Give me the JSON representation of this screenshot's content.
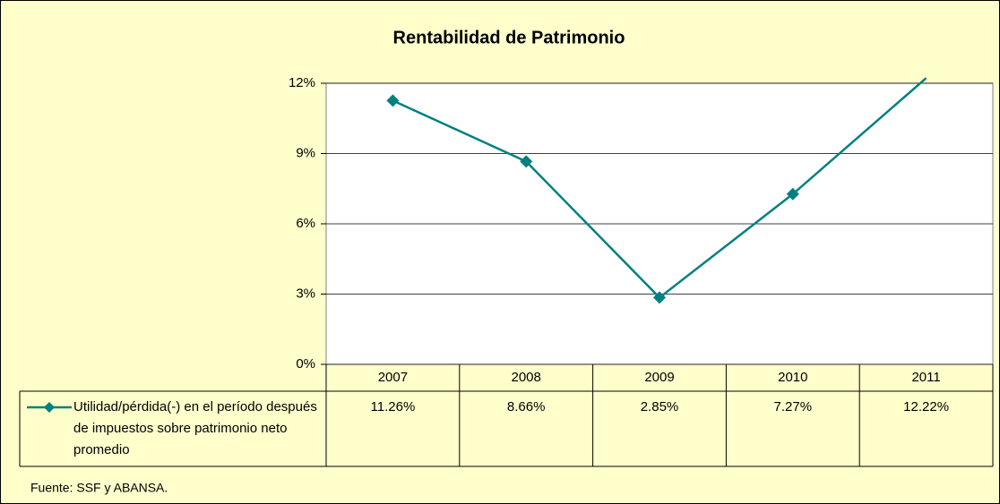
{
  "chart_data": {
    "type": "line",
    "title": "Rentabilidad de Patrimonio",
    "categories": [
      "2007",
      "2008",
      "2009",
      "2010",
      "2011"
    ],
    "series": [
      {
        "name": "Utilidad/pérdida(-) en el período después de impuestos sobre patrimonio neto promedio",
        "color": "#008080",
        "values": [
          11.26,
          8.66,
          2.85,
          7.27,
          12.22
        ],
        "value_labels": [
          "11.26%",
          "8.66%",
          "2.85%",
          "7.27%",
          "12.22%"
        ]
      }
    ],
    "ylim": [
      0,
      12
    ],
    "yticks": [
      {
        "value": 0,
        "label": "0%"
      },
      {
        "value": 3,
        "label": "3%"
      },
      {
        "value": 6,
        "label": "6%"
      },
      {
        "value": 9,
        "label": "9%"
      },
      {
        "value": 12,
        "label": "12%"
      }
    ],
    "grid": true,
    "source": "Fuente: SSF y ABANSA."
  }
}
